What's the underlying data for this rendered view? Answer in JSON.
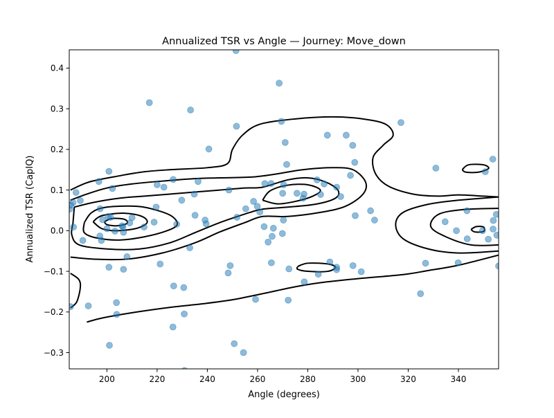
{
  "chart_data": {
    "type": "scatter",
    "title": "Annualized TSR vs Angle — Journey: Move_down",
    "xlabel": "Angle (degrees)",
    "ylabel": "Annualized TSR (CapIQ)",
    "xlim": [
      185,
      356
    ],
    "ylim": [
      -0.34,
      0.445
    ],
    "xticks": [
      200,
      220,
      240,
      260,
      280,
      300,
      320,
      340
    ],
    "yticks": [
      -0.3,
      -0.2,
      -0.1,
      0.0,
      0.1,
      0.2,
      0.3,
      0.4
    ],
    "xtick_labels": [
      "200",
      "220",
      "240",
      "260",
      "280",
      "300",
      "320",
      "340"
    ],
    "ytick_labels": [
      "−0.3",
      "−0.2",
      "−0.1",
      "0.0",
      "0.1",
      "0.2",
      "0.3",
      "0.4"
    ],
    "grid": false,
    "point_color": "#1f77b4",
    "point_alpha": 0.5,
    "contour_color": "#000000",
    "points": [
      [
        251.4,
        0.443
      ],
      [
        268.6,
        0.363
      ],
      [
        216.9,
        0.315
      ],
      [
        233.3,
        0.297
      ],
      [
        269.5,
        0.269
      ],
      [
        317.1,
        0.266
      ],
      [
        251.6,
        0.257
      ],
      [
        287.8,
        0.235
      ],
      [
        295.3,
        0.235
      ],
      [
        271.0,
        0.217
      ],
      [
        297.9,
        0.21
      ],
      [
        240.6,
        0.201
      ],
      [
        353.7,
        0.176
      ],
      [
        298.7,
        0.168
      ],
      [
        271.6,
        0.163
      ],
      [
        331.0,
        0.154
      ],
      [
        200.8,
        0.146
      ],
      [
        350.7,
        0.145
      ],
      [
        297.0,
        0.136
      ],
      [
        226.4,
        0.126
      ],
      [
        283.7,
        0.125
      ],
      [
        196.8,
        0.121
      ],
      [
        236.3,
        0.121
      ],
      [
        262.9,
        0.116
      ],
      [
        265.4,
        0.116
      ],
      [
        286.5,
        0.115
      ],
      [
        220.0,
        0.113
      ],
      [
        270.4,
        0.113
      ],
      [
        222.7,
        0.107
      ],
      [
        291.5,
        0.107
      ],
      [
        202.2,
        0.104
      ],
      [
        248.6,
        0.1
      ],
      [
        187.7,
        0.094
      ],
      [
        270.0,
        0.092
      ],
      [
        275.7,
        0.092
      ],
      [
        278.5,
        0.09
      ],
      [
        234.8,
        0.09
      ],
      [
        285.1,
        0.089
      ],
      [
        293.1,
        0.084
      ],
      [
        278.1,
        0.08
      ],
      [
        229.8,
        0.075
      ],
      [
        189.4,
        0.074
      ],
      [
        186.5,
        0.069
      ],
      [
        258.4,
        0.072
      ],
      [
        185.6,
        0.063
      ],
      [
        259.9,
        0.06
      ],
      [
        197.3,
        0.054
      ],
      [
        255.3,
        0.054
      ],
      [
        219.6,
        0.058
      ],
      [
        185.2,
        0.053
      ],
      [
        305.0,
        0.049
      ],
      [
        343.4,
        0.049
      ],
      [
        355.1,
        0.04
      ],
      [
        260.9,
        0.046
      ],
      [
        235.1,
        0.038
      ],
      [
        200.5,
        0.035
      ],
      [
        201.5,
        0.033
      ],
      [
        210.0,
        0.032
      ],
      [
        251.8,
        0.033
      ],
      [
        198.3,
        0.027
      ],
      [
        270.3,
        0.026
      ],
      [
        306.6,
        0.026
      ],
      [
        298.9,
        0.037
      ],
      [
        353.9,
        0.025
      ],
      [
        239.1,
        0.026
      ],
      [
        334.7,
        0.022
      ],
      [
        218.8,
        0.021
      ],
      [
        209.1,
        0.019
      ],
      [
        227.8,
        0.016
      ],
      [
        239.5,
        0.017
      ],
      [
        206.0,
        0.012
      ],
      [
        206.4,
        0.009
      ],
      [
        214.8,
        0.009
      ],
      [
        262.6,
        0.01
      ],
      [
        186.7,
        0.009
      ],
      [
        200.0,
        0.005
      ],
      [
        203.2,
        -0.001
      ],
      [
        206.6,
        -0.004
      ],
      [
        353.8,
        0.004
      ],
      [
        339.2,
        0.0
      ],
      [
        349.6,
        0.0
      ],
      [
        266.3,
        0.006
      ],
      [
        269.9,
        -0.007
      ],
      [
        265.8,
        -0.014
      ],
      [
        197.2,
        -0.013
      ],
      [
        197.8,
        -0.024
      ],
      [
        190.4,
        -0.024
      ],
      [
        264.2,
        -0.028
      ],
      [
        343.5,
        -0.02
      ],
      [
        351.9,
        -0.021
      ],
      [
        355.3,
        -0.011
      ],
      [
        233.0,
        -0.042
      ],
      [
        208.0,
        -0.064
      ],
      [
        265.5,
        -0.079
      ],
      [
        221.2,
        -0.082
      ],
      [
        249.1,
        -0.086
      ],
      [
        298.0,
        -0.086
      ],
      [
        200.8,
        -0.09
      ],
      [
        288.8,
        -0.077
      ],
      [
        291.5,
        -0.09
      ],
      [
        291.5,
        -0.096
      ],
      [
        206.6,
        -0.095
      ],
      [
        272.5,
        -0.094
      ],
      [
        301.3,
        -0.101
      ],
      [
        248.3,
        -0.104
      ],
      [
        284.2,
        -0.107
      ],
      [
        326.9,
        -0.08
      ],
      [
        339.9,
        -0.079
      ],
      [
        356.0,
        -0.087
      ],
      [
        278.6,
        -0.126
      ],
      [
        226.6,
        -0.136
      ],
      [
        230.6,
        -0.14
      ],
      [
        324.9,
        -0.155
      ],
      [
        259.2,
        -0.169
      ],
      [
        272.2,
        -0.171
      ],
      [
        203.8,
        -0.177
      ],
      [
        192.6,
        -0.185
      ],
      [
        185.5,
        -0.187
      ],
      [
        203.9,
        -0.206
      ],
      [
        230.8,
        -0.205
      ],
      [
        226.3,
        -0.237
      ],
      [
        250.7,
        -0.278
      ],
      [
        201.0,
        -0.282
      ],
      [
        254.4,
        -0.3
      ],
      [
        230.9,
        -0.344
      ]
    ],
    "contours": [
      [
        [
          185.5,
          -0.105
        ],
        [
          188.8,
          -0.12
        ],
        [
          189.4,
          -0.14
        ],
        [
          188.0,
          -0.175
        ],
        [
          185.5,
          -0.19
        ]
      ],
      [
        [
          185.5,
          0.1
        ],
        [
          193.0,
          0.12
        ],
        [
          205.0,
          0.135
        ],
        [
          215.0,
          0.145
        ],
        [
          225.0,
          0.15
        ],
        [
          240.0,
          0.155
        ],
        [
          248.0,
          0.165
        ],
        [
          250.0,
          0.2
        ],
        [
          254.0,
          0.235
        ],
        [
          261.0,
          0.262
        ],
        [
          275.0,
          0.275
        ],
        [
          290.0,
          0.28
        ],
        [
          302.0,
          0.275
        ],
        [
          311.0,
          0.262
        ],
        [
          314.0,
          0.235
        ],
        [
          310.0,
          0.21
        ],
        [
          306.0,
          0.18
        ],
        [
          307.0,
          0.14
        ],
        [
          312.0,
          0.11
        ],
        [
          322.0,
          0.09
        ],
        [
          332.0,
          0.085
        ],
        [
          340.0,
          0.088
        ],
        [
          350.0,
          0.085
        ],
        [
          356.0,
          0.083
        ]
      ],
      [
        [
          356.0,
          -0.06
        ],
        [
          340.0,
          -0.085
        ],
        [
          328.0,
          -0.098
        ],
        [
          318.0,
          -0.108
        ],
        [
          300.0,
          -0.118
        ],
        [
          285.0,
          -0.128
        ],
        [
          275.0,
          -0.138
        ],
        [
          262.0,
          -0.155
        ],
        [
          250.0,
          -0.17
        ],
        [
          238.0,
          -0.18
        ],
        [
          226.0,
          -0.188
        ],
        [
          212.0,
          -0.2
        ],
        [
          198.0,
          -0.215
        ],
        [
          192.0,
          -0.225
        ]
      ],
      [
        [
          185.5,
          0.075
        ],
        [
          192.0,
          0.09
        ],
        [
          200.0,
          0.105
        ],
        [
          210.0,
          0.115
        ],
        [
          222.0,
          0.122
        ],
        [
          235.0,
          0.128
        ],
        [
          245.0,
          0.13
        ],
        [
          258.0,
          0.132
        ],
        [
          268.0,
          0.14
        ],
        [
          278.0,
          0.15
        ],
        [
          290.0,
          0.155
        ],
        [
          298.0,
          0.15
        ],
        [
          303.0,
          0.12
        ],
        [
          302.0,
          0.09
        ],
        [
          295.0,
          0.06
        ],
        [
          285.0,
          0.045
        ],
        [
          272.0,
          0.035
        ],
        [
          262.0,
          0.035
        ],
        [
          255.0,
          0.02
        ],
        [
          245.0,
          -0.003
        ],
        [
          235.0,
          -0.03
        ],
        [
          222.0,
          -0.055
        ],
        [
          208.0,
          -0.07
        ],
        [
          195.0,
          -0.07
        ],
        [
          185.5,
          -0.065
        ]
      ],
      [
        [
          187.0,
          0.058
        ],
        [
          195.0,
          0.07
        ],
        [
          205.0,
          0.08
        ],
        [
          215.0,
          0.085
        ],
        [
          225.0,
          0.09
        ],
        [
          235.0,
          0.095
        ],
        [
          245.0,
          0.1
        ],
        [
          255.0,
          0.105
        ],
        [
          262.0,
          0.107
        ],
        [
          272.0,
          0.125
        ],
        [
          280.0,
          0.13
        ],
        [
          287.0,
          0.12
        ],
        [
          292.0,
          0.1
        ],
        [
          291.0,
          0.08
        ],
        [
          283.0,
          0.065
        ],
        [
          272.0,
          0.058
        ],
        [
          262.0,
          0.053
        ],
        [
          257.0,
          0.045
        ],
        [
          252.0,
          0.035
        ],
        [
          245.0,
          0.02
        ],
        [
          235.0,
          -0.005
        ],
        [
          225.0,
          -0.03
        ],
        [
          213.0,
          -0.045
        ],
        [
          200.0,
          -0.045
        ],
        [
          189.0,
          -0.035
        ],
        [
          186.0,
          -0.01
        ],
        [
          186.5,
          0.02
        ],
        [
          187.0,
          0.058
        ]
      ],
      [
        [
          191.0,
          0.02
        ],
        [
          194.0,
          0.045
        ],
        [
          200.0,
          0.058
        ],
        [
          212.0,
          0.06
        ],
        [
          220.0,
          0.05
        ],
        [
          226.0,
          0.035
        ],
        [
          228.0,
          0.015
        ],
        [
          224.0,
          0.0
        ],
        [
          215.0,
          -0.015
        ],
        [
          205.0,
          -0.023
        ],
        [
          196.0,
          -0.018
        ],
        [
          191.0,
          -0.005
        ],
        [
          191.0,
          0.02
        ]
      ],
      [
        [
          194.5,
          0.022
        ],
        [
          198.0,
          0.037
        ],
        [
          207.0,
          0.043
        ],
        [
          214.0,
          0.035
        ],
        [
          216.0,
          0.02
        ],
        [
          212.0,
          0.006
        ],
        [
          204.0,
          0.0
        ],
        [
          198.0,
          0.005
        ],
        [
          194.5,
          0.022
        ]
      ],
      [
        [
          199.0,
          0.022
        ],
        [
          202.0,
          0.03
        ],
        [
          207.0,
          0.028
        ],
        [
          208.0,
          0.018
        ],
        [
          204.0,
          0.012
        ],
        [
          200.0,
          0.015
        ],
        [
          199.0,
          0.022
        ]
      ],
      [
        [
          262.0,
          0.075
        ],
        [
          265.0,
          0.098
        ],
        [
          272.0,
          0.112
        ],
        [
          280.0,
          0.113
        ],
        [
          285.0,
          0.1
        ],
        [
          282.0,
          0.085
        ],
        [
          275.0,
          0.072
        ],
        [
          268.0,
          0.066
        ],
        [
          262.0,
          0.075
        ]
      ],
      [
        [
          276.0,
          -0.088
        ],
        [
          280.0,
          -0.08
        ],
        [
          288.0,
          -0.082
        ],
        [
          291.0,
          -0.09
        ],
        [
          288.0,
          -0.1
        ],
        [
          280.0,
          -0.1
        ],
        [
          276.0,
          -0.095
        ],
        [
          276.0,
          -0.088
        ]
      ],
      [
        [
          356.0,
          0.083
        ],
        [
          340.0,
          0.075
        ],
        [
          328.0,
          0.065
        ],
        [
          318.0,
          0.045
        ],
        [
          315.0,
          0.015
        ],
        [
          318.0,
          -0.02
        ],
        [
          328.0,
          -0.045
        ],
        [
          340.0,
          -0.055
        ],
        [
          356.0,
          -0.05
        ]
      ],
      [
        [
          356.0,
          0.055
        ],
        [
          342.0,
          0.052
        ],
        [
          332.0,
          0.04
        ],
        [
          329.0,
          0.01
        ],
        [
          335.0,
          -0.015
        ],
        [
          345.0,
          -0.035
        ],
        [
          356.0,
          -0.035
        ]
      ],
      [
        [
          341.5,
          0.15
        ],
        [
          344.0,
          0.162
        ],
        [
          350.0,
          0.162
        ],
        [
          352.0,
          0.153
        ],
        [
          348.0,
          0.144
        ],
        [
          343.0,
          0.144
        ],
        [
          341.5,
          0.15
        ]
      ],
      [
        [
          345.0,
          0.003
        ],
        [
          347.0,
          0.01
        ],
        [
          350.0,
          0.009
        ],
        [
          350.0,
          -0.002
        ],
        [
          346.5,
          -0.003
        ],
        [
          345.0,
          0.003
        ]
      ]
    ]
  }
}
